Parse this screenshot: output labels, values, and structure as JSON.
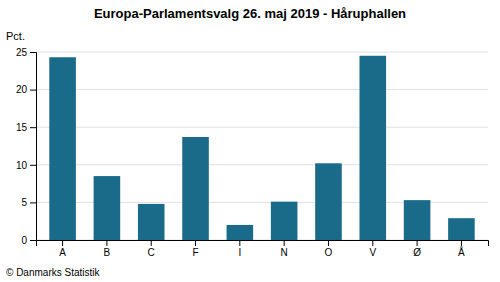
{
  "chart_data": {
    "type": "bar",
    "title": "Europa-Parlamentsvalg 26. maj 2019 - Håruphallen",
    "categories": [
      "A",
      "B",
      "C",
      "F",
      "I",
      "N",
      "O",
      "V",
      "Ø",
      "Å"
    ],
    "values": [
      24.3,
      8.5,
      4.8,
      13.7,
      2.0,
      5.1,
      10.2,
      24.5,
      5.3,
      2.9
    ],
    "color": "#1a6b8a",
    "ylabel": "Pct.",
    "footer": "© Danmarks Statistik",
    "ylim": [
      0,
      25
    ],
    "yticks": [
      0,
      5,
      10,
      15,
      20,
      25
    ],
    "grid": true
  }
}
